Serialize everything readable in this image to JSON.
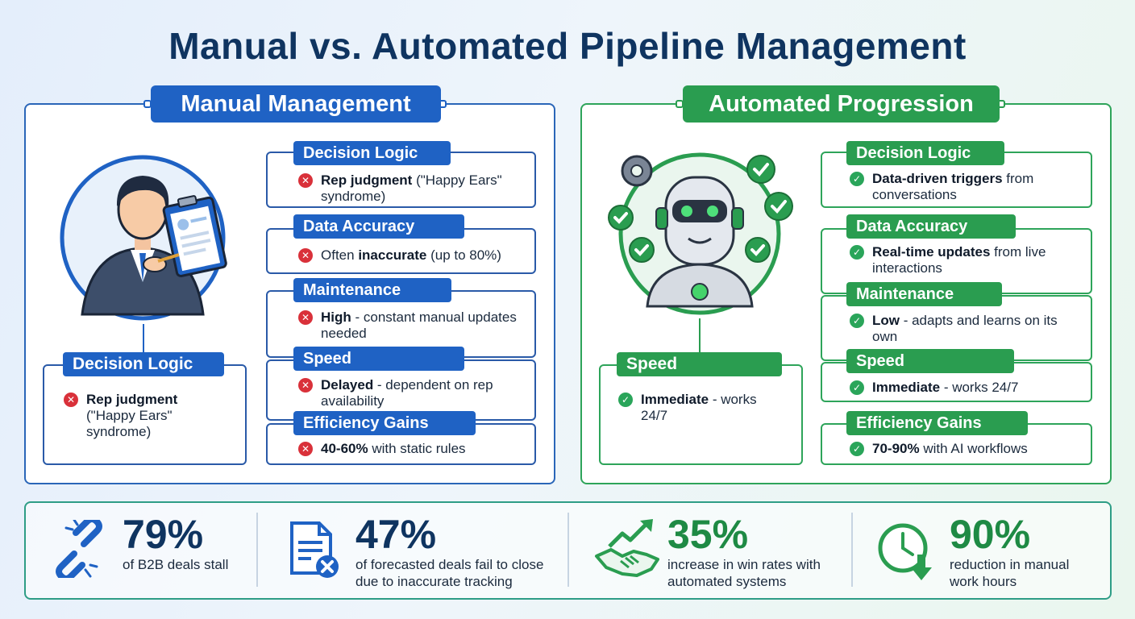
{
  "title": "Manual vs. Automated Pipeline Management",
  "manual": {
    "header": "Manual Management",
    "callout": {
      "label": "Decision Logic",
      "bold": "Rep judgment",
      "text": "(\"Happy Ears\" syndrome)"
    },
    "items": [
      {
        "label": "Decision Logic",
        "bold": "Rep judgment",
        "text": " (\"Happy Ears\" syndrome)"
      },
      {
        "label": "Data Accuracy",
        "pre": "Often ",
        "bold": "inaccurate",
        "text": " (up to 80%)"
      },
      {
        "label": "Maintenance",
        "bold": "High",
        "text": " - constant manual updates needed"
      },
      {
        "label": "Speed",
        "bold": "Delayed",
        "text": " - dependent on rep availability"
      },
      {
        "label": "Efficiency Gains",
        "bold": "40-60%",
        "text": " with static rules"
      }
    ]
  },
  "automated": {
    "header": "Automated Progression",
    "callout": {
      "label": "Speed",
      "bold": "Immediate",
      "text": " - works 24/7"
    },
    "items": [
      {
        "label": "Decision Logic",
        "bold": "Data-driven triggers",
        "text": " from conversations"
      },
      {
        "label": "Data Accuracy",
        "bold": "Real-time updates",
        "text": " from live interactions"
      },
      {
        "label": "Maintenance",
        "bold": "Low",
        "text": " - adapts and learns on its own"
      },
      {
        "label": "Speed",
        "bold": "Immediate",
        "text": " - works 24/7"
      },
      {
        "label": "Efficiency Gains",
        "bold": "70-90%",
        "text": " with AI workflows"
      }
    ]
  },
  "stats": [
    {
      "value": "79%",
      "line1": "of B2B deals stall",
      "line2": "",
      "icon": "broken-chain-icon",
      "color": "blue"
    },
    {
      "value": "47%",
      "line1": "of forecasted deals fail to close",
      "line2": "due to inaccurate tracking",
      "icon": "document-x-icon",
      "color": "blue"
    },
    {
      "value": "35%",
      "line1": "increase in win rates with",
      "line2": "automated systems",
      "icon": "handshake-growth-icon",
      "color": "green"
    },
    {
      "value": "90%",
      "line1": "reduction in manual",
      "line2": "work hours",
      "icon": "clock-down-icon",
      "color": "green"
    }
  ],
  "colors": {
    "blue": "#1f62c4",
    "green": "#2a9d50",
    "red": "#d9313a",
    "navy": "#0f3460"
  }
}
